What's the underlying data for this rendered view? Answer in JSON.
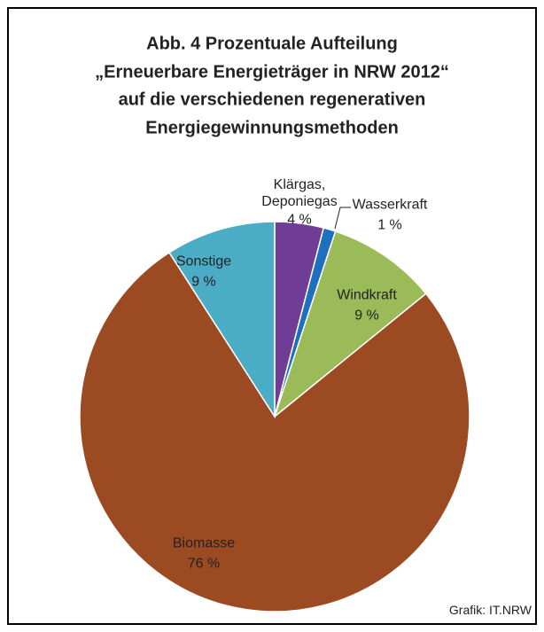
{
  "chart_data": {
    "type": "pie",
    "title": [
      "Abb. 4 Prozentuale Aufteilung",
      "„Erneuerbare Energieträger in NRW 2012“",
      "auf die verschiedenen regenerativen",
      "Energiegewinnungsmethoden"
    ],
    "categories": [
      "Klärgas, Deponiegas",
      "Wasserkraft",
      "Windkraft",
      "Biomasse",
      "Sonstige"
    ],
    "values": [
      4,
      1,
      9,
      76,
      9
    ],
    "value_labels": [
      "4 %",
      "1 %",
      "9 %",
      "76 %",
      "9 %"
    ],
    "colors": [
      "#6f3c96",
      "#1f6fbf",
      "#9bbb59",
      "#9c4a22",
      "#4bacc6"
    ],
    "source": "Grafik: IT.NRW"
  }
}
